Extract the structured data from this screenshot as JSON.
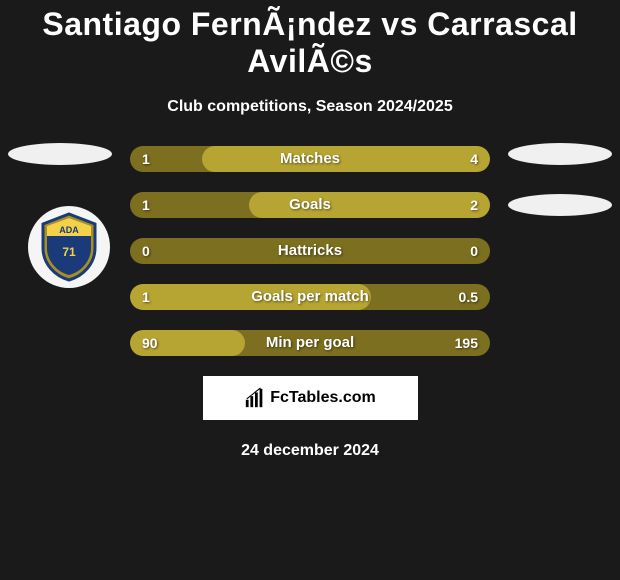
{
  "title": "Santiago FernÃ¡ndez vs Carrascal AvilÃ©s",
  "subtitle": "Club competitions, Season 2024/2025",
  "date": "24 december 2024",
  "brand": "FcTables.com",
  "colors": {
    "background": "#1a1a1a",
    "bar_base": "#7c6f1f",
    "bar_highlight": "#b6a433",
    "text": "#ffffff",
    "placeholder": "#f0f0f0"
  },
  "rows": [
    {
      "label": "Matches",
      "left": "1",
      "right": "4",
      "left_pct": 20,
      "right_pct": 80,
      "highlight": "right"
    },
    {
      "label": "Goals",
      "left": "1",
      "right": "2",
      "left_pct": 33,
      "right_pct": 67,
      "highlight": "right"
    },
    {
      "label": "Hattricks",
      "left": "0",
      "right": "0",
      "left_pct": 50,
      "right_pct": 50,
      "highlight": "none"
    },
    {
      "label": "Goals per match",
      "left": "1",
      "right": "0.5",
      "left_pct": 67,
      "right_pct": 33,
      "highlight": "left"
    },
    {
      "label": "Min per goal",
      "left": "90",
      "right": "195",
      "left_pct": 32,
      "right_pct": 68,
      "highlight": "left"
    }
  ]
}
